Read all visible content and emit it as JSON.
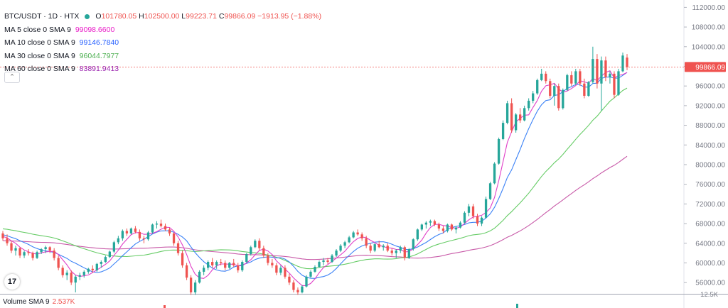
{
  "header": {
    "symbol": "BTC/USDT · 1D · HTX",
    "open_label": "O",
    "open": "101780.05",
    "high_label": "H",
    "high": "102500.00",
    "low_label": "L",
    "low": "99223.71",
    "close_label": "C",
    "close": "99866.09",
    "change": "−1913.95 (−1.88%)"
  },
  "indicators": [
    {
      "label": "MA 5 close 0 SMA 9",
      "value": "99098.6600",
      "color": "#e91ec8"
    },
    {
      "label": "MA 10 close 0 SMA 9",
      "value": "99146.7840",
      "color": "#2962ff"
    },
    {
      "label": "MA 30 close 0 SMA 9",
      "value": "96044.7977",
      "color": "#4caf50"
    },
    {
      "label": "MA 60 close 0 SMA 9",
      "value": "83891.9413",
      "color": "#9c27b0"
    }
  ],
  "volume": {
    "label": "Volume SMA 9",
    "value": "2.537K"
  },
  "price_axis": {
    "ticks": [
      "112000.00",
      "108000.00",
      "104000.00",
      "100000.00",
      "96000.00",
      "92000.00",
      "88000.00",
      "84000.00",
      "80000.00",
      "76000.00",
      "72000.00",
      "68000.00",
      "64000.00",
      "60000.00",
      "56000.00"
    ],
    "last_price_tag": "99866.09",
    "volume_tick": "12.5K"
  },
  "colors": {
    "up": "#26a69a",
    "down": "#ef5350"
  },
  "chart_data": {
    "type": "candlestick",
    "ylim": [
      54000,
      113500
    ],
    "candles": [
      [
        66000,
        66500,
        64500,
        65000
      ],
      [
        65000,
        65800,
        63500,
        64000
      ],
      [
        64000,
        64500,
        62000,
        62500
      ],
      [
        62500,
        63500,
        61500,
        63000
      ],
      [
        63000,
        63200,
        61000,
        61500
      ],
      [
        61500,
        62500,
        61000,
        62200
      ],
      [
        62200,
        62800,
        61500,
        62000
      ],
      [
        62000,
        62300,
        60500,
        61000
      ],
      [
        61000,
        62500,
        60800,
        62200
      ],
      [
        62200,
        63000,
        61800,
        62800
      ],
      [
        62800,
        63500,
        62000,
        63200
      ],
      [
        63200,
        63400,
        62000,
        62500
      ],
      [
        62500,
        63000,
        60500,
        61000
      ],
      [
        61000,
        61500,
        58500,
        59000
      ],
      [
        59000,
        59500,
        57000,
        57500
      ],
      [
        57500,
        58500,
        56500,
        58000
      ],
      [
        58000,
        58500,
        55500,
        56000
      ],
      [
        56000,
        57500,
        54000,
        57200
      ],
      [
        57200,
        58000,
        56500,
        57500
      ],
      [
        57500,
        58500,
        57000,
        58200
      ],
      [
        58200,
        59000,
        57800,
        58800
      ],
      [
        58800,
        59500,
        58000,
        58500
      ],
      [
        58500,
        60000,
        58200,
        59800
      ],
      [
        59800,
        60500,
        59000,
        60200
      ],
      [
        60200,
        61500,
        60000,
        61200
      ],
      [
        61200,
        62500,
        61000,
        62300
      ],
      [
        62300,
        64500,
        62000,
        64200
      ],
      [
        64200,
        65500,
        63800,
        65000
      ],
      [
        65000,
        66800,
        64500,
        66500
      ],
      [
        66500,
        67000,
        65500,
        66000
      ],
      [
        66000,
        67200,
        65800,
        67000
      ],
      [
        67000,
        67500,
        66000,
        66300
      ],
      [
        66300,
        66800,
        64500,
        65000
      ],
      [
        65000,
        65500,
        64000,
        64800
      ],
      [
        64800,
        66500,
        64500,
        66200
      ],
      [
        66200,
        68000,
        66000,
        67800
      ],
      [
        67800,
        68500,
        67000,
        68000
      ],
      [
        68000,
        68800,
        67200,
        67500
      ],
      [
        67500,
        68000,
        66500,
        66800
      ],
      [
        66800,
        67200,
        65500,
        66000
      ],
      [
        66000,
        66200,
        63500,
        64000
      ],
      [
        64000,
        64500,
        61500,
        62000
      ],
      [
        62000,
        62500,
        59000,
        59500
      ],
      [
        59500,
        60000,
        56500,
        57000
      ],
      [
        57000,
        57500,
        53500,
        54000
      ],
      [
        54000,
        56500,
        53500,
        56000
      ],
      [
        56000,
        58500,
        55800,
        58200
      ],
      [
        58200,
        59500,
        57500,
        59000
      ],
      [
        59000,
        60500,
        58500,
        60200
      ],
      [
        60200,
        61000,
        59000,
        59500
      ],
      [
        59500,
        60500,
        58800,
        60200
      ],
      [
        60200,
        60800,
        59500,
        60000
      ],
      [
        60000,
        60500,
        58500,
        59000
      ],
      [
        59000,
        60200,
        58800,
        60000
      ],
      [
        60000,
        60800,
        59200,
        59500
      ],
      [
        59500,
        60000,
        58000,
        58500
      ],
      [
        58500,
        60500,
        58200,
        60200
      ],
      [
        60200,
        62000,
        60000,
        61800
      ],
      [
        61800,
        63500,
        61500,
        63200
      ],
      [
        63200,
        64800,
        63000,
        64500
      ],
      [
        64500,
        65000,
        62500,
        63000
      ],
      [
        63000,
        63500,
        61000,
        61500
      ],
      [
        61500,
        62000,
        59500,
        60000
      ],
      [
        60000,
        60800,
        59000,
        59500
      ],
      [
        59500,
        60000,
        57500,
        58000
      ],
      [
        58000,
        59500,
        57500,
        59000
      ],
      [
        59000,
        59500,
        56800,
        57200
      ],
      [
        57200,
        57800,
        55500,
        56000
      ],
      [
        56000,
        56500,
        54000,
        54500
      ],
      [
        54500,
        55000,
        53500,
        54000
      ],
      [
        54000,
        55500,
        53800,
        55200
      ],
      [
        55200,
        57500,
        55000,
        57200
      ],
      [
        57200,
        58500,
        57000,
        58200
      ],
      [
        58200,
        59500,
        58000,
        59200
      ],
      [
        59200,
        60500,
        59000,
        60200
      ],
      [
        60200,
        61000,
        59500,
        60500
      ],
      [
        60500,
        61000,
        59800,
        60200
      ],
      [
        60200,
        61800,
        60000,
        61500
      ],
      [
        61500,
        62800,
        61200,
        62500
      ],
      [
        62500,
        63800,
        62200,
        63500
      ],
      [
        63500,
        64500,
        63000,
        64200
      ],
      [
        64200,
        65500,
        64000,
        65200
      ],
      [
        65200,
        66500,
        65000,
        66200
      ],
      [
        66200,
        66800,
        65500,
        65800
      ],
      [
        65800,
        66200,
        64500,
        65000
      ],
      [
        65000,
        65500,
        63000,
        63500
      ],
      [
        63500,
        64000,
        62000,
        62500
      ],
      [
        62500,
        64000,
        62200,
        63800
      ],
      [
        63800,
        64500,
        63000,
        63200
      ],
      [
        63200,
        63800,
        62500,
        63500
      ],
      [
        63500,
        64000,
        62200,
        62500
      ],
      [
        62500,
        63000,
        61500,
        62000
      ],
      [
        62000,
        62800,
        61000,
        62500
      ],
      [
        62500,
        63500,
        62000,
        63200
      ],
      [
        63200,
        63500,
        60500,
        61000
      ],
      [
        61000,
        63000,
        60800,
        62800
      ],
      [
        62800,
        65000,
        62500,
        64800
      ],
      [
        64800,
        67000,
        64500,
        66800
      ],
      [
        66800,
        68000,
        66500,
        67800
      ],
      [
        67800,
        68500,
        67000,
        68200
      ],
      [
        68200,
        68800,
        67500,
        68500
      ],
      [
        68500,
        68800,
        67500,
        67800
      ],
      [
        67800,
        68200,
        66500,
        67000
      ],
      [
        67000,
        67500,
        66000,
        66500
      ],
      [
        66500,
        68000,
        66200,
        67800
      ],
      [
        67800,
        68000,
        66500,
        66800
      ],
      [
        66800,
        67500,
        66000,
        67200
      ],
      [
        67200,
        68500,
        67000,
        68200
      ],
      [
        68200,
        70500,
        68000,
        70200
      ],
      [
        70200,
        72000,
        69500,
        71500
      ],
      [
        71500,
        72000,
        69000,
        69500
      ],
      [
        69500,
        70000,
        67500,
        68000
      ],
      [
        68000,
        69500,
        67500,
        69200
      ],
      [
        69200,
        73500,
        69000,
        73000
      ],
      [
        73000,
        76500,
        72800,
        76200
      ],
      [
        76200,
        80500,
        76000,
        80200
      ],
      [
        80200,
        85500,
        80000,
        85200
      ],
      [
        85200,
        89000,
        85000,
        88500
      ],
      [
        88500,
        93000,
        88200,
        92500
      ],
      [
        92500,
        93500,
        86500,
        87000
      ],
      [
        87000,
        90500,
        86500,
        90200
      ],
      [
        90200,
        91500,
        88500,
        89000
      ],
      [
        89000,
        92000,
        88800,
        91500
      ],
      [
        91500,
        93500,
        91000,
        93000
      ],
      [
        93000,
        95000,
        92500,
        94500
      ],
      [
        94500,
        97500,
        94200,
        97200
      ],
      [
        97200,
        99500,
        97000,
        98500
      ],
      [
        98500,
        99000,
        96500,
        97000
      ],
      [
        97000,
        97500,
        93500,
        94000
      ],
      [
        94000,
        96500,
        92000,
        96000
      ],
      [
        96000,
        96500,
        91000,
        91500
      ],
      [
        91500,
        95500,
        91200,
        95200
      ],
      [
        95200,
        98500,
        95000,
        98200
      ],
      [
        98200,
        99000,
        96000,
        96500
      ],
      [
        96500,
        99500,
        96200,
        99000
      ],
      [
        99000,
        99500,
        96000,
        96500
      ],
      [
        96500,
        97500,
        93500,
        94000
      ],
      [
        94000,
        97000,
        93800,
        96800
      ],
      [
        96800,
        104000,
        96500,
        101500
      ],
      [
        101500,
        102500,
        95500,
        96500
      ],
      [
        96500,
        102000,
        91000,
        101200
      ],
      [
        101200,
        102000,
        97000,
        97800
      ],
      [
        97800,
        99000,
        96500,
        98500
      ],
      [
        98500,
        99000,
        93500,
        94200
      ],
      [
        94200,
        99500,
        94000,
        99000
      ],
      [
        99000,
        102800,
        98800,
        102200
      ],
      [
        101780.05,
        102500,
        99223.71,
        99866.09
      ]
    ],
    "ma5": "MA 5 close 0 SMA 9",
    "ma10": "MA 10 close 0 SMA 9",
    "ma30": "MA 30 close 0 SMA 9",
    "ma60": "MA 60 close 0 SMA 9"
  }
}
